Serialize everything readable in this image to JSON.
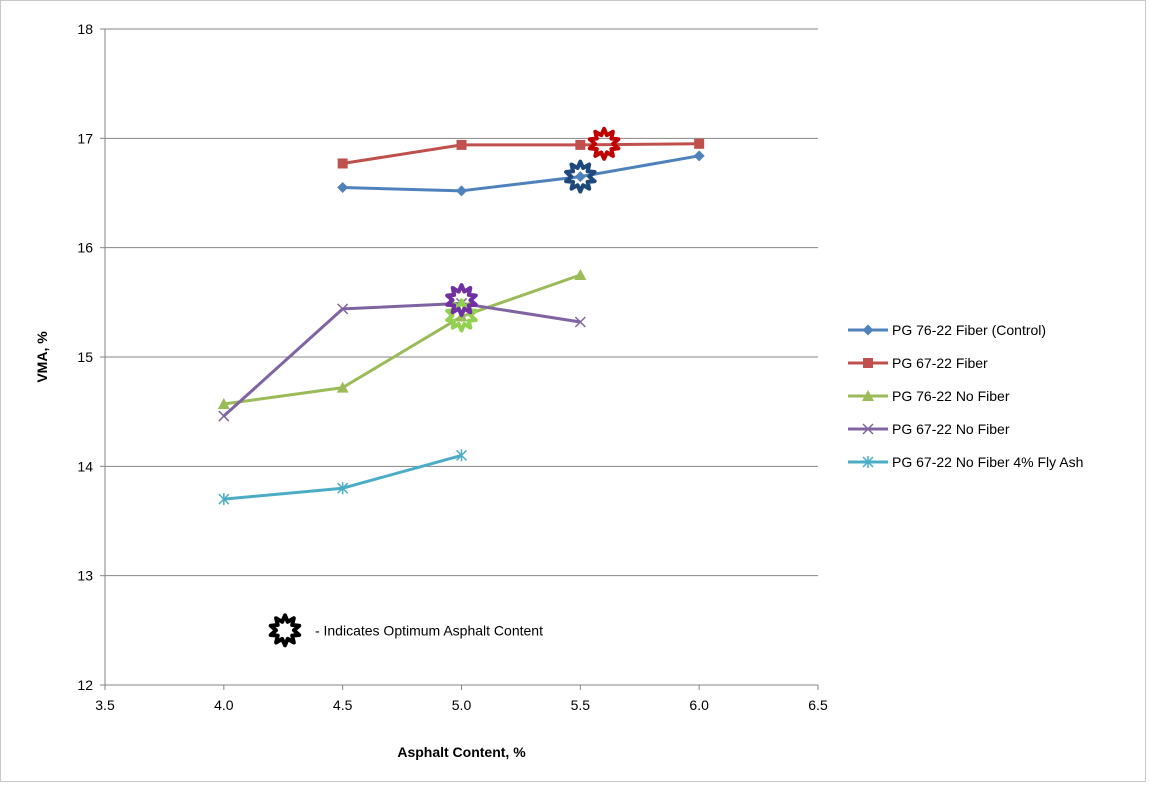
{
  "chart_data": {
    "type": "line",
    "title": "",
    "xlabel": "Asphalt Content, %",
    "ylabel": "VMA, %",
    "xlim": [
      3.5,
      6.5
    ],
    "ylim": [
      12,
      18
    ],
    "x_ticks": [
      "3.5",
      "4.0",
      "4.5",
      "5.0",
      "5.5",
      "6.0",
      "6.5"
    ],
    "y_ticks": [
      "12",
      "13",
      "14",
      "15",
      "16",
      "17",
      "18"
    ],
    "grid": "horizontal",
    "legend_position": "right",
    "series": [
      {
        "name": "PG 76-22 Fiber (Control)",
        "color": "#4f81bd",
        "marker": "diamond",
        "x": [
          4.5,
          5.0,
          5.5,
          6.0
        ],
        "y": [
          16.55,
          16.52,
          16.65,
          16.84
        ]
      },
      {
        "name": "PG 67-22 Fiber",
        "color": "#c0504d",
        "marker": "square",
        "x": [
          4.5,
          5.0,
          5.5,
          6.0
        ],
        "y": [
          16.77,
          16.94,
          16.94,
          16.95
        ]
      },
      {
        "name": "PG 76-22 No Fiber",
        "color": "#9bbb59",
        "marker": "triangle",
        "x": [
          4.0,
          4.5,
          5.0,
          5.5
        ],
        "y": [
          14.57,
          14.72,
          15.37,
          15.75
        ]
      },
      {
        "name": "PG 67-22 No Fiber",
        "color": "#8064a2",
        "marker": "x",
        "x": [
          4.0,
          4.5,
          5.0,
          5.5
        ],
        "y": [
          14.46,
          15.44,
          15.49,
          15.32
        ]
      },
      {
        "name": "PG 67-22 No Fiber 4% Fly Ash",
        "color": "#4bacc6",
        "marker": "star",
        "x": [
          4.0,
          4.5,
          5.0
        ],
        "y": [
          13.7,
          13.8,
          14.1
        ]
      }
    ],
    "optimum_markers": [
      {
        "series": "PG 76-22 Fiber (Control)",
        "color": "#1f497d",
        "x": 5.5,
        "y": 16.65
      },
      {
        "series": "PG 67-22 Fiber",
        "color": "#c00000",
        "x": 5.6,
        "y": 16.95
      },
      {
        "series": "PG 76-22 No Fiber",
        "color": "#92d050",
        "x": 5.0,
        "y": 15.38
      },
      {
        "series": "PG 67-22 No Fiber",
        "color": "#7030a0",
        "x": 5.0,
        "y": 15.52
      }
    ],
    "annotation": {
      "text": "- Indicates Optimum Asphalt Content",
      "icon_color": "#000000",
      "x": 4.72,
      "y": 12.5
    }
  }
}
